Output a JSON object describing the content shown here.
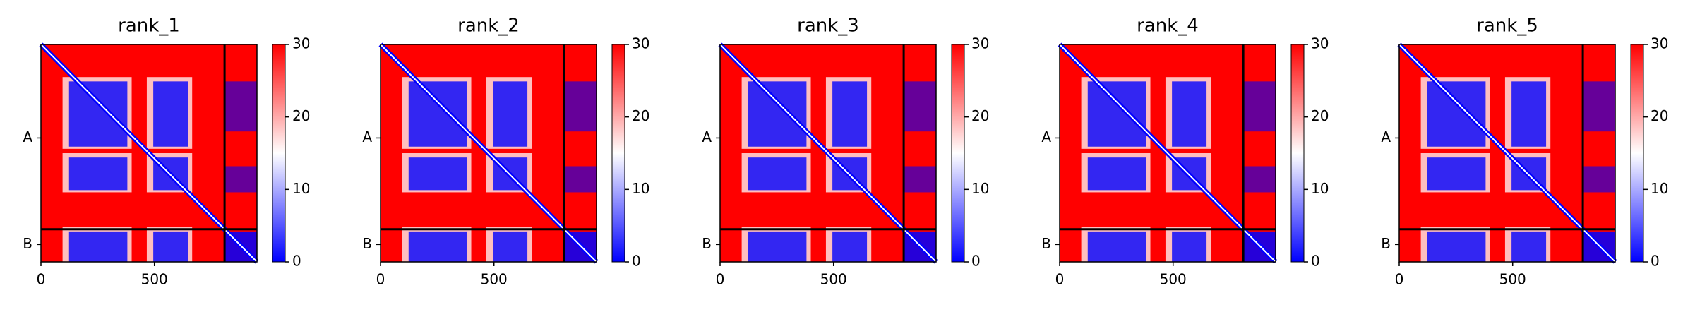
{
  "chart_data": [
    {
      "type": "heatmap",
      "title": "rank_1",
      "xlim": [
        0,
        952
      ],
      "xticks": [
        0,
        500
      ],
      "categories": [
        "A",
        "B"
      ],
      "colormap": [
        "#0000ff",
        "#ffffff",
        "#ff0000"
      ],
      "clim": [
        0,
        30
      ],
      "cticks": [
        0,
        10,
        20,
        30
      ]
    },
    {
      "type": "heatmap",
      "title": "rank_2",
      "xlim": [
        0,
        952
      ],
      "xticks": [
        0,
        500
      ],
      "categories": [
        "A",
        "B"
      ],
      "colormap": [
        "#0000ff",
        "#ffffff",
        "#ff0000"
      ],
      "clim": [
        0,
        30
      ],
      "cticks": [
        0,
        10,
        20,
        30
      ]
    },
    {
      "type": "heatmap",
      "title": "rank_3",
      "xlim": [
        0,
        952
      ],
      "xticks": [
        0,
        500
      ],
      "categories": [
        "A",
        "B"
      ],
      "colormap": [
        "#0000ff",
        "#ffffff",
        "#ff0000"
      ],
      "clim": [
        0,
        30
      ],
      "cticks": [
        0,
        10,
        20,
        30
      ]
    },
    {
      "type": "heatmap",
      "title": "rank_4",
      "xlim": [
        0,
        952
      ],
      "xticks": [
        0,
        500
      ],
      "categories": [
        "A",
        "B"
      ],
      "colormap": [
        "#0000ff",
        "#ffffff",
        "#ff0000"
      ],
      "clim": [
        0,
        30
      ],
      "cticks": [
        0,
        10,
        20,
        30
      ]
    },
    {
      "type": "heatmap",
      "title": "rank_5",
      "xlim": [
        0,
        952
      ],
      "xticks": [
        0,
        500
      ],
      "categories": [
        "A",
        "B"
      ],
      "colormap": [
        "#0000ff",
        "#ffffff",
        "#ff0000"
      ],
      "clim": [
        0,
        30
      ],
      "cticks": [
        0,
        10,
        20,
        30
      ]
    }
  ]
}
